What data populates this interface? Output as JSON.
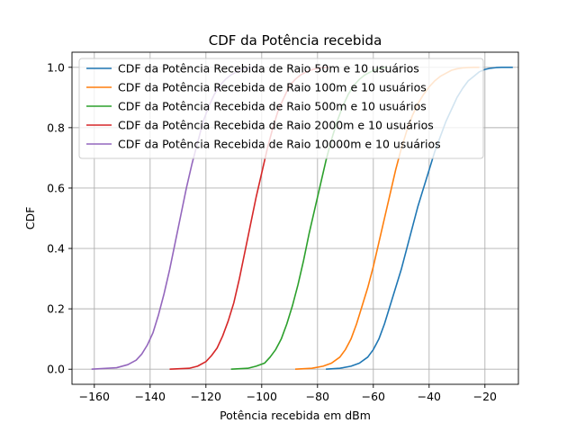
{
  "chart_data": {
    "type": "line",
    "title": "CDF da Potência recebida",
    "xlabel": "Potência recebida em dBm",
    "ylabel": "CDF",
    "xlim": [
      -168,
      -8
    ],
    "ylim": [
      -0.05,
      1.05
    ],
    "xticks": [
      -160,
      -140,
      -120,
      -100,
      -80,
      -60,
      -40,
      -20
    ],
    "xtick_labels": [
      "−160",
      "−140",
      "−120",
      "−100",
      "−80",
      "−60",
      "−40",
      "−20"
    ],
    "yticks": [
      0.0,
      0.2,
      0.4,
      0.6,
      0.8,
      1.0
    ],
    "ytick_labels": [
      "0.0",
      "0.2",
      "0.4",
      "0.6",
      "0.8",
      "1.0"
    ],
    "grid": true,
    "legend_position": "top-left",
    "series": [
      {
        "name": "CDF da Potência Recebida de Raio 50m e 10 usuários",
        "color": "#1f77b4",
        "x": [
          -77,
          -72,
          -68,
          -65,
          -62,
          -60,
          -58,
          -56,
          -54,
          -52,
          -50,
          -48,
          -46,
          -44,
          -42,
          -40,
          -38,
          -36,
          -34,
          -32,
          -30,
          -28,
          -26,
          -24,
          -22,
          -20,
          -18,
          -16,
          -14,
          -12,
          -10
        ],
        "y": [
          0.0,
          0.003,
          0.01,
          0.02,
          0.04,
          0.065,
          0.1,
          0.15,
          0.21,
          0.27,
          0.33,
          0.4,
          0.47,
          0.54,
          0.6,
          0.66,
          0.72,
          0.77,
          0.82,
          0.86,
          0.9,
          0.93,
          0.955,
          0.97,
          0.985,
          0.993,
          0.997,
          0.999,
          1.0,
          1.0,
          1.0
        ]
      },
      {
        "name": "CDF da Potência Recebida de Raio 100m e 10 usuários",
        "color": "#ff7f0e",
        "x": [
          -88,
          -82,
          -78,
          -75,
          -72,
          -70,
          -68,
          -66,
          -64,
          -62,
          -60,
          -58,
          -56,
          -54,
          -52,
          -50,
          -48,
          -46,
          -44,
          -42,
          -40,
          -38,
          -36,
          -34,
          -32,
          -30,
          -28,
          -26,
          -24,
          -22
        ],
        "y": [
          0.0,
          0.003,
          0.01,
          0.02,
          0.04,
          0.065,
          0.1,
          0.15,
          0.21,
          0.27,
          0.34,
          0.42,
          0.5,
          0.58,
          0.66,
          0.73,
          0.79,
          0.84,
          0.88,
          0.91,
          0.935,
          0.955,
          0.97,
          0.98,
          0.99,
          0.995,
          0.998,
          0.999,
          1.0,
          1.0
        ]
      },
      {
        "name": "CDF da Potência Recebida de Raio 500m e 10 usuários",
        "color": "#2ca02c",
        "x": [
          -111,
          -105,
          -102,
          -99,
          -97,
          -95,
          -93,
          -91,
          -89,
          -87,
          -85,
          -83,
          -81,
          -79,
          -77,
          -75,
          -73,
          -71,
          -69,
          -67,
          -65,
          -63,
          -61,
          -59,
          -57,
          -55
        ],
        "y": [
          0.0,
          0.003,
          0.01,
          0.02,
          0.04,
          0.065,
          0.1,
          0.15,
          0.21,
          0.28,
          0.36,
          0.45,
          0.53,
          0.61,
          0.69,
          0.76,
          0.82,
          0.87,
          0.91,
          0.94,
          0.96,
          0.975,
          0.985,
          0.993,
          0.998,
          1.0
        ]
      },
      {
        "name": "CDF da Potência Recebida de Raio 2000m e 10 usuários",
        "color": "#d62728",
        "x": [
          -133,
          -126,
          -123,
          -120,
          -118,
          -116,
          -114,
          -112,
          -110,
          -108,
          -106,
          -104,
          -102,
          -100,
          -98,
          -96,
          -94,
          -92,
          -90,
          -88,
          -86,
          -84,
          -82,
          -80,
          -78,
          -76
        ],
        "y": [
          0.0,
          0.003,
          0.01,
          0.025,
          0.045,
          0.07,
          0.11,
          0.16,
          0.22,
          0.3,
          0.39,
          0.48,
          0.57,
          0.65,
          0.73,
          0.8,
          0.86,
          0.9,
          0.94,
          0.96,
          0.975,
          0.985,
          0.992,
          0.996,
          0.999,
          1.0
        ]
      },
      {
        "name": "CDF da Potência Recebida de Raio 10000m e 10 usuários",
        "color": "#9467bd",
        "x": [
          -161,
          -152,
          -148,
          -145,
          -143,
          -141,
          -139,
          -137,
          -135,
          -133,
          -131,
          -129,
          -127,
          -125,
          -123,
          -121,
          -119,
          -117,
          -115,
          -113,
          -111,
          -109,
          -107,
          -105,
          -103
        ],
        "y": [
          0.0,
          0.005,
          0.015,
          0.03,
          0.05,
          0.08,
          0.12,
          0.18,
          0.25,
          0.33,
          0.42,
          0.51,
          0.6,
          0.68,
          0.75,
          0.82,
          0.87,
          0.91,
          0.94,
          0.96,
          0.975,
          0.985,
          0.993,
          0.998,
          1.0
        ]
      }
    ]
  }
}
